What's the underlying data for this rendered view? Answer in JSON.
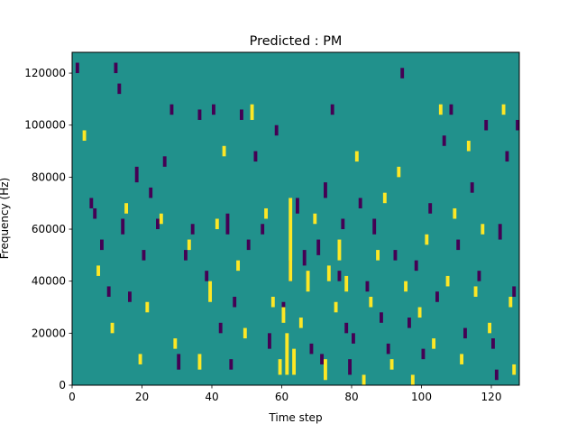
{
  "chart_data": {
    "type": "heatmap",
    "title": "Predicted : PM",
    "xlabel": "Time step",
    "ylabel": "Frequency (Hz)",
    "xlim": [
      0,
      128
    ],
    "ylim": [
      0,
      128000
    ],
    "xticks": [
      0,
      20,
      40,
      60,
      80,
      100,
      120
    ],
    "yticks": [
      0,
      20000,
      40000,
      60000,
      80000,
      100000,
      120000
    ],
    "n_time": 128,
    "n_freq": 128,
    "colors": {
      "background": "#21918c",
      "low": "#440154",
      "high": "#fde725"
    },
    "low_cells": [
      [
        1,
        120000,
        124000
      ],
      [
        5,
        68000,
        72000
      ],
      [
        6,
        64000,
        68000
      ],
      [
        8,
        52000,
        56000
      ],
      [
        10,
        34000,
        38000
      ],
      [
        12,
        120000,
        124000
      ],
      [
        13,
        112000,
        116000
      ],
      [
        14,
        58000,
        64000
      ],
      [
        16,
        32000,
        36000
      ],
      [
        18,
        78000,
        84000
      ],
      [
        20,
        48000,
        52000
      ],
      [
        22,
        72000,
        76000
      ],
      [
        24,
        60000,
        64000
      ],
      [
        26,
        84000,
        88000
      ],
      [
        28,
        104000,
        108000
      ],
      [
        30,
        6000,
        12000
      ],
      [
        32,
        48000,
        52000
      ],
      [
        34,
        58000,
        62000
      ],
      [
        36,
        102000,
        106000
      ],
      [
        38,
        40000,
        44000
      ],
      [
        40,
        104000,
        108000
      ],
      [
        42,
        20000,
        24000
      ],
      [
        44,
        58000,
        66000
      ],
      [
        45,
        6000,
        10000
      ],
      [
        46,
        30000,
        34000
      ],
      [
        48,
        102000,
        106000
      ],
      [
        50,
        52000,
        56000
      ],
      [
        52,
        86000,
        90000
      ],
      [
        54,
        58000,
        62000
      ],
      [
        56,
        14000,
        20000
      ],
      [
        58,
        96000,
        100000
      ],
      [
        60,
        28000,
        32000
      ],
      [
        62,
        40000,
        48000
      ],
      [
        64,
        66000,
        72000
      ],
      [
        66,
        46000,
        52000
      ],
      [
        68,
        12000,
        16000
      ],
      [
        70,
        50000,
        56000
      ],
      [
        71,
        8000,
        12000
      ],
      [
        72,
        72000,
        78000
      ],
      [
        74,
        104000,
        108000
      ],
      [
        76,
        40000,
        44000
      ],
      [
        77,
        60000,
        64000
      ],
      [
        78,
        20000,
        24000
      ],
      [
        79,
        4000,
        10000
      ],
      [
        80,
        16000,
        20000
      ],
      [
        82,
        68000,
        72000
      ],
      [
        84,
        36000,
        40000
      ],
      [
        86,
        58000,
        64000
      ],
      [
        88,
        24000,
        28000
      ],
      [
        90,
        12000,
        16000
      ],
      [
        92,
        48000,
        52000
      ],
      [
        94,
        118000,
        122000
      ],
      [
        96,
        22000,
        26000
      ],
      [
        98,
        44000,
        48000
      ],
      [
        100,
        10000,
        14000
      ],
      [
        102,
        66000,
        70000
      ],
      [
        104,
        32000,
        36000
      ],
      [
        106,
        92000,
        96000
      ],
      [
        108,
        104000,
        108000
      ],
      [
        110,
        52000,
        56000
      ],
      [
        112,
        18000,
        22000
      ],
      [
        114,
        74000,
        78000
      ],
      [
        116,
        40000,
        44000
      ],
      [
        118,
        98000,
        102000
      ],
      [
        120,
        14000,
        18000
      ],
      [
        121,
        2000,
        6000
      ],
      [
        122,
        56000,
        62000
      ],
      [
        124,
        86000,
        90000
      ],
      [
        126,
        34000,
        38000
      ],
      [
        127,
        98000,
        102000
      ]
    ],
    "high_cells": [
      [
        3,
        94000,
        98000
      ],
      [
        7,
        42000,
        46000
      ],
      [
        11,
        20000,
        24000
      ],
      [
        15,
        66000,
        70000
      ],
      [
        19,
        8000,
        12000
      ],
      [
        21,
        28000,
        32000
      ],
      [
        25,
        62000,
        66000
      ],
      [
        29,
        14000,
        18000
      ],
      [
        33,
        52000,
        56000
      ],
      [
        36,
        6000,
        12000
      ],
      [
        39,
        32000,
        40000
      ],
      [
        41,
        60000,
        64000
      ],
      [
        43,
        88000,
        92000
      ],
      [
        47,
        44000,
        48000
      ],
      [
        49,
        18000,
        22000
      ],
      [
        51,
        102000,
        108000
      ],
      [
        55,
        64000,
        68000
      ],
      [
        57,
        30000,
        34000
      ],
      [
        59,
        4000,
        10000
      ],
      [
        60,
        24000,
        30000
      ],
      [
        61,
        4000,
        20000
      ],
      [
        62,
        40000,
        72000
      ],
      [
        63,
        4000,
        14000
      ],
      [
        65,
        22000,
        26000
      ],
      [
        67,
        36000,
        44000
      ],
      [
        69,
        62000,
        66000
      ],
      [
        72,
        2000,
        10000
      ],
      [
        73,
        40000,
        46000
      ],
      [
        75,
        28000,
        32000
      ],
      [
        76,
        48000,
        56000
      ],
      [
        78,
        36000,
        42000
      ],
      [
        81,
        86000,
        90000
      ],
      [
        83,
        0,
        4000
      ],
      [
        85,
        30000,
        34000
      ],
      [
        87,
        48000,
        52000
      ],
      [
        89,
        70000,
        74000
      ],
      [
        91,
        6000,
        10000
      ],
      [
        93,
        80000,
        84000
      ],
      [
        95,
        36000,
        40000
      ],
      [
        97,
        0,
        4000
      ],
      [
        99,
        26000,
        30000
      ],
      [
        101,
        54000,
        58000
      ],
      [
        103,
        14000,
        18000
      ],
      [
        105,
        104000,
        108000
      ],
      [
        107,
        38000,
        42000
      ],
      [
        109,
        64000,
        68000
      ],
      [
        111,
        8000,
        12000
      ],
      [
        113,
        90000,
        94000
      ],
      [
        115,
        34000,
        38000
      ],
      [
        117,
        58000,
        62000
      ],
      [
        119,
        20000,
        24000
      ],
      [
        123,
        104000,
        108000
      ],
      [
        125,
        30000,
        34000
      ],
      [
        126,
        4000,
        8000
      ]
    ]
  }
}
